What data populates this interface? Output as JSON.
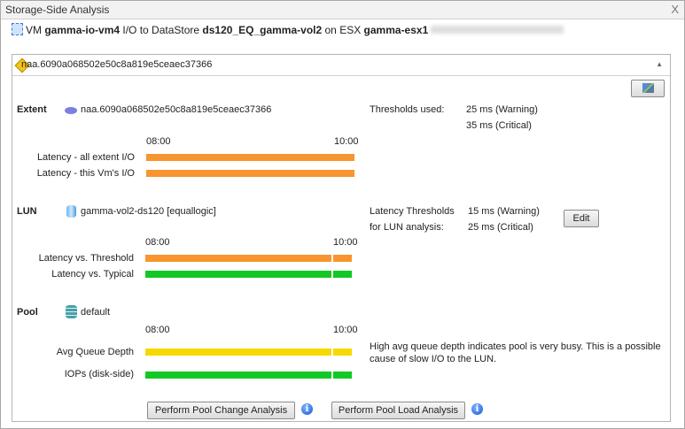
{
  "window": {
    "title": "Storage-Side Analysis",
    "close": "X"
  },
  "header": {
    "p1": "VM ",
    "vm": "gamma-io-vm4",
    "p2": " I/O to DataStore ",
    "datastore": "ds120_EQ_gamma-vol2",
    "p3": " on ESX ",
    "esx": "gamma-esx1"
  },
  "panel": {
    "title": "naa.6090a068502e50c8a819e5ceaec37366",
    "collapse": "▲"
  },
  "colors": {
    "warning": "#f7952f",
    "normal": "#12c825",
    "queue": "#f7d800"
  },
  "extent": {
    "label": "Extent",
    "name": "naa.6090a068502e50c8a819e5ceaec37366",
    "t_start": "08:00",
    "t_end": "10:00",
    "thresholds_label": "Thresholds used:",
    "warning": "25 ms (Warning)",
    "critical": "35 ms (Critical)",
    "rows": [
      {
        "label": "Latency - all extent I/O",
        "segments": [
          {
            "from": 0,
            "to": 1,
            "status": "warning"
          }
        ]
      },
      {
        "label": "Latency - this Vm's I/O",
        "segments": [
          {
            "from": 0,
            "to": 1,
            "status": "warning"
          }
        ]
      }
    ]
  },
  "lun": {
    "label": "LUN",
    "name": "gamma-vol2-ds120 [equallogic]",
    "t_start": "08:00",
    "t_end": "10:00",
    "thresholds_label1": "Latency Thresholds",
    "thresholds_label2": "for LUN analysis:",
    "warning": "15 ms (Warning)",
    "critical": "25 ms (Critical)",
    "edit": "Edit",
    "rows": [
      {
        "label": "Latency vs. Threshold",
        "segments": [
          {
            "from": 0,
            "to": 0.9,
            "status": "warning"
          },
          {
            "from": 0.91,
            "to": 1,
            "status": "warning"
          }
        ]
      },
      {
        "label": "Latency vs. Typical",
        "segments": [
          {
            "from": 0,
            "to": 0.9,
            "status": "normal"
          },
          {
            "from": 0.91,
            "to": 1,
            "status": "normal"
          }
        ]
      }
    ]
  },
  "pool": {
    "label": "Pool",
    "name": "default",
    "t_start": "08:00",
    "t_end": "10:00",
    "note1": "High avg queue depth indicates pool is very busy. This is a possible",
    "note2": "cause of slow I/O to the LUN.",
    "rows": [
      {
        "label": "Avg Queue Depth",
        "segments": [
          {
            "from": 0,
            "to": 0.9,
            "status": "queue"
          },
          {
            "from": 0.91,
            "to": 1,
            "status": "queue"
          }
        ]
      },
      {
        "label": "IOPs (disk-side)",
        "segments": [
          {
            "from": 0,
            "to": 0.9,
            "status": "normal"
          },
          {
            "from": 0.91,
            "to": 1,
            "status": "normal"
          }
        ]
      }
    ]
  },
  "buttons": {
    "change": "Perform Pool Change Analysis",
    "load": "Perform Pool Load Analysis",
    "info": "i"
  }
}
